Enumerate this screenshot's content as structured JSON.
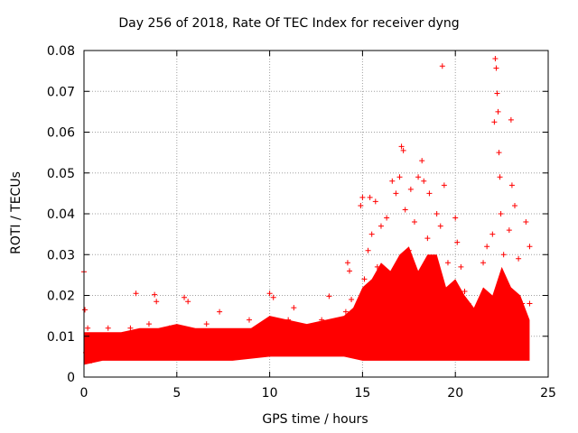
{
  "chart_data": {
    "type": "scatter",
    "title": "Day 256 of 2018, Rate Of TEC Index for receiver dyng",
    "xlabel": "GPS time / hours",
    "ylabel": "ROTI / TECUs",
    "xlim": [
      0,
      25
    ],
    "ylim": [
      0,
      0.08
    ],
    "xticks": [
      0,
      5,
      10,
      15,
      20,
      25
    ],
    "yticks": [
      0,
      0.01,
      0.02,
      0.03,
      0.04,
      0.05,
      0.06,
      0.07,
      0.08
    ],
    "xtick_labels": [
      "0",
      "5",
      "10",
      "15",
      "20",
      "25"
    ],
    "ytick_labels": [
      "0",
      "0.01",
      "0.02",
      "0.03",
      "0.04",
      "0.05",
      "0.06",
      "0.07",
      "0.08"
    ],
    "grid": true,
    "marker": "+",
    "color": "#ff0000",
    "series": [
      {
        "name": "ROTI",
        "points": [
          [
            0.0,
            0.0258
          ],
          [
            0.05,
            0.0165
          ],
          [
            0.1,
            0.006
          ],
          [
            0.2,
            0.012
          ],
          [
            0.4,
            0.004
          ],
          [
            0.6,
            0.009
          ],
          [
            1.0,
            0.008
          ],
          [
            1.3,
            0.012
          ],
          [
            1.7,
            0.005
          ],
          [
            2.1,
            0.009
          ],
          [
            2.5,
            0.012
          ],
          [
            2.8,
            0.0205
          ],
          [
            3.1,
            0.006
          ],
          [
            3.5,
            0.013
          ],
          [
            3.8,
            0.0202
          ],
          [
            3.9,
            0.0185
          ],
          [
            4.3,
            0.007
          ],
          [
            4.6,
            0.012
          ],
          [
            5.0,
            0.006
          ],
          [
            5.4,
            0.0195
          ],
          [
            5.6,
            0.0185
          ],
          [
            5.9,
            0.01
          ],
          [
            6.3,
            0.005
          ],
          [
            6.6,
            0.013
          ],
          [
            7.0,
            0.007
          ],
          [
            7.3,
            0.016
          ],
          [
            7.7,
            0.008
          ],
          [
            8.1,
            0.011
          ],
          [
            8.5,
            0.005
          ],
          [
            8.9,
            0.014
          ],
          [
            9.2,
            0.008
          ],
          [
            9.6,
            0.012
          ],
          [
            10.0,
            0.0205
          ],
          [
            10.2,
            0.0195
          ],
          [
            10.6,
            0.008
          ],
          [
            11.0,
            0.014
          ],
          [
            11.3,
            0.017
          ],
          [
            11.7,
            0.009
          ],
          [
            12.1,
            0.012
          ],
          [
            12.5,
            0.006
          ],
          [
            12.8,
            0.014
          ],
          [
            13.2,
            0.0198
          ],
          [
            13.5,
            0.01
          ],
          [
            13.9,
            0.007
          ],
          [
            14.1,
            0.016
          ],
          [
            14.2,
            0.028
          ],
          [
            14.3,
            0.026
          ],
          [
            14.4,
            0.019
          ],
          [
            14.6,
            0.012
          ],
          [
            14.8,
            0.018
          ],
          [
            14.9,
            0.042
          ],
          [
            15.0,
            0.044
          ],
          [
            15.1,
            0.024
          ],
          [
            15.3,
            0.031
          ],
          [
            15.4,
            0.044
          ],
          [
            15.5,
            0.035
          ],
          [
            15.7,
            0.043
          ],
          [
            15.8,
            0.027
          ],
          [
            16.0,
            0.037
          ],
          [
            16.2,
            0.025
          ],
          [
            16.3,
            0.039
          ],
          [
            16.4,
            0.022
          ],
          [
            16.6,
            0.048
          ],
          [
            16.8,
            0.045
          ],
          [
            17.0,
            0.049
          ],
          [
            17.1,
            0.0565
          ],
          [
            17.2,
            0.0555
          ],
          [
            17.3,
            0.041
          ],
          [
            17.5,
            0.031
          ],
          [
            17.6,
            0.046
          ],
          [
            17.8,
            0.038
          ],
          [
            18.0,
            0.049
          ],
          [
            18.2,
            0.053
          ],
          [
            18.3,
            0.048
          ],
          [
            18.5,
            0.034
          ],
          [
            18.6,
            0.045
          ],
          [
            18.8,
            0.027
          ],
          [
            19.0,
            0.04
          ],
          [
            19.2,
            0.037
          ],
          [
            19.3,
            0.0762
          ],
          [
            19.4,
            0.047
          ],
          [
            19.6,
            0.028
          ],
          [
            19.8,
            0.022
          ],
          [
            20.0,
            0.039
          ],
          [
            20.1,
            0.033
          ],
          [
            20.3,
            0.027
          ],
          [
            20.5,
            0.021
          ],
          [
            20.7,
            0.018
          ],
          [
            21.0,
            0.015
          ],
          [
            21.3,
            0.017
          ],
          [
            21.5,
            0.028
          ],
          [
            21.7,
            0.032
          ],
          [
            22.0,
            0.035
          ],
          [
            22.1,
            0.0625
          ],
          [
            22.15,
            0.078
          ],
          [
            22.2,
            0.0757
          ],
          [
            22.25,
            0.0695
          ],
          [
            22.3,
            0.065
          ],
          [
            22.35,
            0.055
          ],
          [
            22.4,
            0.049
          ],
          [
            22.45,
            0.04
          ],
          [
            22.6,
            0.03
          ],
          [
            22.9,
            0.036
          ],
          [
            23.0,
            0.063
          ],
          [
            23.05,
            0.047
          ],
          [
            23.2,
            0.042
          ],
          [
            23.4,
            0.029
          ],
          [
            23.6,
            0.018
          ],
          [
            23.8,
            0.038
          ],
          [
            24.0,
            0.032
          ],
          [
            24.0,
            0.018
          ]
        ]
      }
    ]
  }
}
